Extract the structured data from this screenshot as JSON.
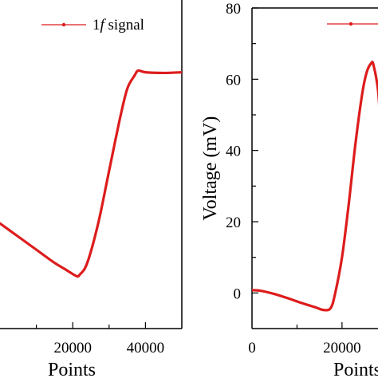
{
  "chart_data": [
    {
      "type": "line",
      "title": "",
      "xlabel": "Points",
      "ylabel": "",
      "xlim": [
        0,
        50000
      ],
      "x_ticks": [
        {
          "value": 20000,
          "label": "20000"
        },
        {
          "value": 40000,
          "label": "40000"
        }
      ],
      "grid": false,
      "legend": {
        "placement": "top-right",
        "entries": [
          {
            "prefix": "1",
            "italic": "f",
            "suffix": " signal"
          }
        ]
      },
      "series": [
        {
          "name": "1f signal",
          "color": "#dd1c1c",
          "points": [
            [
              0,
              0.32
            ],
            [
              5000,
              0.28
            ],
            [
              10000,
              0.24
            ],
            [
              15000,
              0.2
            ],
            [
              18000,
              0.18
            ],
            [
              21000,
              0.16
            ],
            [
              22000,
              0.165
            ],
            [
              24000,
              0.2
            ],
            [
              27000,
              0.32
            ],
            [
              30000,
              0.48
            ],
            [
              33000,
              0.64
            ],
            [
              35000,
              0.73
            ],
            [
              37000,
              0.77
            ],
            [
              38000,
              0.785
            ],
            [
              40000,
              0.78
            ],
            [
              45000,
              0.778
            ],
            [
              50000,
              0.78
            ]
          ]
        }
      ]
    },
    {
      "type": "line",
      "title": "",
      "xlabel": "Points",
      "ylabel": "Voltage (mV)",
      "xlim": [
        0,
        28000
      ],
      "ylim": [
        -10,
        80
      ],
      "x_ticks": [
        {
          "value": 0,
          "label": "0"
        },
        {
          "value": 20000,
          "label": "20000"
        }
      ],
      "y_ticks": [
        {
          "value": 0,
          "label": "0"
        },
        {
          "value": 20,
          "label": "20"
        },
        {
          "value": 40,
          "label": "40"
        },
        {
          "value": 60,
          "label": "60"
        },
        {
          "value": 80,
          "label": "80"
        }
      ],
      "grid": false,
      "series": [
        {
          "color": "#dd1c1c",
          "points": [
            [
              0,
              0.8
            ],
            [
              2000,
              0.6
            ],
            [
              5000,
              -0.3
            ],
            [
              8000,
              -1.5
            ],
            [
              11000,
              -2.8
            ],
            [
              14000,
              -4.0
            ],
            [
              16000,
              -4.8
            ],
            [
              17500,
              -4.2
            ],
            [
              18500,
              0
            ],
            [
              20000,
              10
            ],
            [
              21500,
              25
            ],
            [
              23000,
              42
            ],
            [
              24500,
              56
            ],
            [
              25500,
              62
            ],
            [
              26500,
              64.5
            ],
            [
              27000,
              64
            ],
            [
              28000,
              57
            ],
            [
              28500,
              48
            ]
          ]
        }
      ]
    }
  ]
}
